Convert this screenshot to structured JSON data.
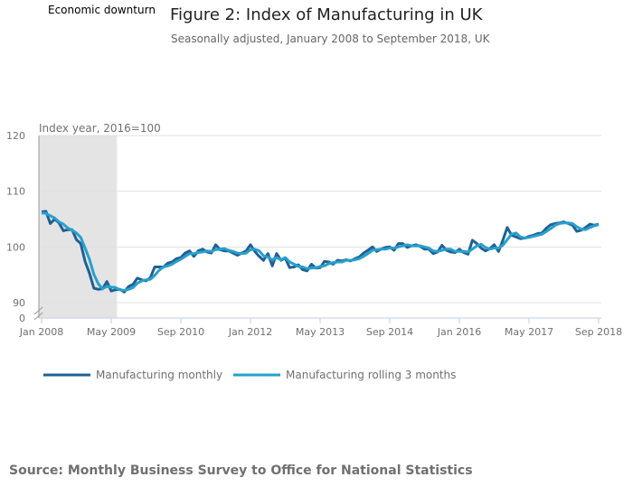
{
  "annotation": "Economic downturn",
  "chart_data": {
    "type": "line",
    "title": "Figure 2: Index of Manufacturing in UK",
    "subtitle": "Seasonally adjusted, January 2008 to September 2018, UK",
    "ylabel": "Index year, 2016=100",
    "xlabel": "",
    "x_start": "2008-01",
    "x_end": "2018-09",
    "x_ticks": [
      "Jan 2008",
      "May 2009",
      "Sep 2010",
      "Jan 2012",
      "May 2013",
      "Sep 2014",
      "Jan 2016",
      "May 2017",
      "Sep 2018"
    ],
    "y_ticks": [
      0,
      90,
      100,
      110,
      120
    ],
    "ylim": [
      90,
      120
    ],
    "y_axis_break": true,
    "grid": true,
    "legend_position": "bottom-left",
    "shaded_period": {
      "label": "Economic downturn",
      "from": "2008-01",
      "to": "2009-06",
      "color": "#e4e4e4"
    },
    "series": [
      {
        "name": "Manufacturing monthly",
        "color": "#206095",
        "values": [
          106.3,
          106.4,
          104.2,
          105.0,
          104.3,
          102.9,
          103.1,
          103.1,
          101.3,
          100.6,
          97.4,
          95.3,
          92.6,
          92.4,
          92.5,
          93.8,
          92.1,
          92.3,
          92.4,
          91.9,
          92.9,
          93.3,
          94.4,
          94.1,
          93.9,
          94.5,
          96.4,
          96.4,
          96.4,
          97.1,
          97.3,
          97.9,
          98.1,
          98.9,
          99.3,
          98.3,
          99.3,
          99.6,
          99.1,
          98.9,
          100.4,
          99.5,
          99.3,
          99.3,
          98.9,
          98.5,
          98.9,
          99.3,
          100.4,
          99.2,
          98.3,
          97.6,
          98.8,
          96.6,
          98.8,
          97.6,
          98.0,
          96.3,
          96.4,
          96.8,
          95.9,
          95.7,
          96.9,
          96.2,
          96.3,
          97.4,
          97.3,
          96.9,
          97.6,
          97.5,
          97.7,
          97.5,
          97.9,
          98.2,
          98.9,
          99.4,
          100.0,
          99.2,
          99.6,
          99.9,
          100.0,
          99.4,
          100.6,
          100.6,
          99.9,
          100.2,
          100.4,
          100.1,
          99.6,
          99.6,
          98.8,
          99.1,
          100.3,
          99.4,
          99.1,
          99.0,
          99.6,
          99.0,
          98.7,
          101.2,
          100.6,
          99.8,
          99.3,
          99.7,
          100.4,
          99.2,
          101.2,
          103.5,
          102.1,
          101.8,
          101.5,
          101.6,
          101.9,
          102.1,
          102.4,
          102.5,
          103.4,
          104.0,
          104.2,
          104.3,
          104.5,
          104.2,
          103.9,
          102.8,
          103.0,
          103.5,
          104.1,
          103.9,
          104.1
        ]
      },
      {
        "name": "Manufacturing rolling 3 months",
        "color": "#27a0cc",
        "values": [
          106.1,
          106.0,
          105.6,
          105.2,
          104.5,
          104.1,
          103.4,
          103.0,
          102.5,
          101.7,
          99.8,
          97.8,
          95.1,
          93.4,
          92.5,
          92.9,
          92.8,
          92.7,
          92.3,
          92.2,
          92.4,
          92.7,
          93.5,
          93.9,
          94.1,
          94.2,
          94.9,
          95.8,
          96.4,
          96.6,
          96.9,
          97.4,
          97.8,
          98.3,
          98.8,
          98.8,
          99.0,
          99.1,
          99.3,
          99.2,
          99.5,
          99.6,
          99.7,
          99.4,
          99.2,
          98.9,
          98.8,
          98.9,
          99.5,
          99.6,
          99.3,
          98.4,
          98.2,
          97.7,
          98.1,
          97.7,
          98.1,
          97.3,
          96.9,
          96.5,
          96.4,
          96.1,
          96.2,
          96.3,
          96.5,
          96.6,
          97.0,
          97.2,
          97.3,
          97.3,
          97.6,
          97.6,
          97.7,
          97.9,
          98.3,
          98.8,
          99.4,
          99.5,
          99.6,
          99.6,
          99.8,
          99.8,
          100.0,
          100.2,
          100.4,
          100.2,
          100.2,
          100.2,
          100.0,
          99.8,
          99.3,
          99.2,
          99.4,
          99.6,
          99.6,
          99.2,
          99.2,
          99.2,
          99.1,
          99.6,
          100.2,
          100.5,
          99.9,
          99.6,
          99.8,
          99.8,
          100.3,
          101.3,
          102.3,
          102.5,
          101.8,
          101.6,
          101.7,
          101.9,
          102.1,
          102.3,
          102.8,
          103.3,
          103.9,
          104.2,
          104.3,
          104.3,
          104.2,
          103.6,
          103.2,
          103.1,
          103.5,
          103.8,
          104.0
        ]
      }
    ]
  },
  "source": "Source: Monthly Business Survey to Office for National Statistics"
}
